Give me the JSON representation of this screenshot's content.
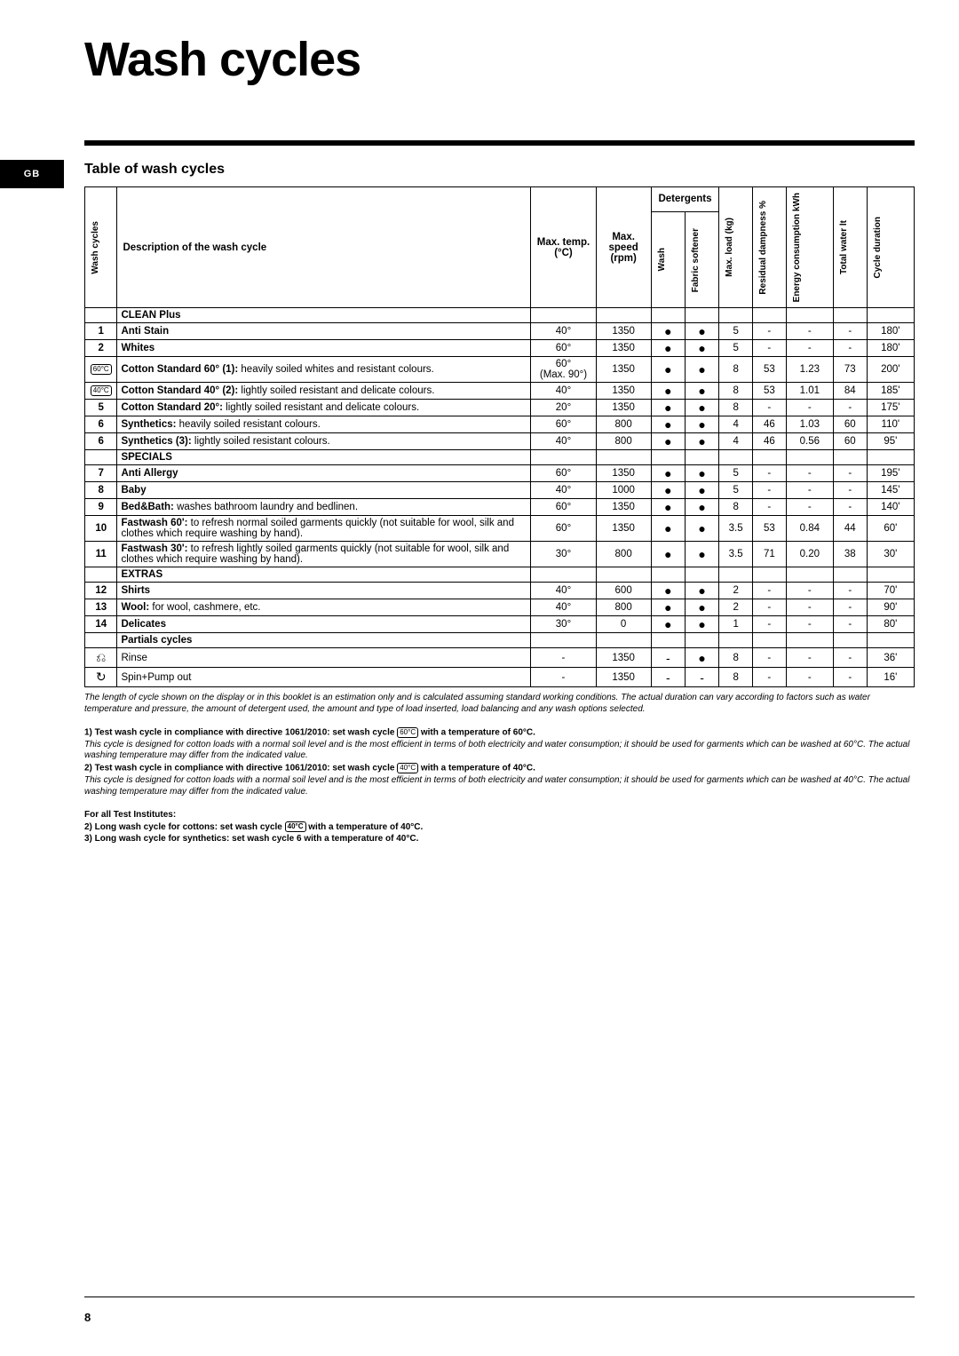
{
  "lang_tab": "GB",
  "title": "Wash cycles",
  "subtitle": "Table of wash cycles",
  "page_number": "8",
  "headers": {
    "wash_cycles": "Wash cycles",
    "description": "Description of the wash cycle",
    "max_temp": "Max. temp. (°C)",
    "max_speed": "Max. speed (rpm)",
    "detergents": "Detergents",
    "wash": "Wash",
    "fabric_softener": "Fabric softener",
    "max_load": "Max. load (kg)",
    "residual_dampness": "Residual dampness %",
    "energy": "Energy consumption kWh",
    "total_water": "Total water lt",
    "cycle_duration": "Cycle duration"
  },
  "sections": [
    {
      "name": "CLEAN Plus",
      "rows": [
        {
          "num": "1",
          "desc": "<b>Anti Stain</b>",
          "temp": "40°",
          "speed": "1350",
          "wash": "●",
          "soft": "●",
          "load": "5",
          "damp": "-",
          "energy": "-",
          "water": "-",
          "dur": "180'"
        },
        {
          "num": "2",
          "desc": "<b>Whites</b>",
          "temp": "60°",
          "speed": "1350",
          "wash": "●",
          "soft": "●",
          "load": "5",
          "damp": "-",
          "energy": "-",
          "water": "-",
          "dur": "180'"
        },
        {
          "num": "icon60",
          "desc": "<b>Cotton Standard 60° (1):</b> heavily soiled whites and resistant colours.",
          "temp": "60°<br>(Max. 90°)",
          "speed": "1350",
          "wash": "●",
          "soft": "●",
          "load": "8",
          "damp": "53",
          "energy": "1.23",
          "water": "73",
          "dur": "200'"
        },
        {
          "num": "icon40",
          "desc": "<b>Cotton Standard 40° (2):</b> lightly soiled resistant and delicate colours.",
          "temp": "40°",
          "speed": "1350",
          "wash": "●",
          "soft": "●",
          "load": "8",
          "damp": "53",
          "energy": "1.01",
          "water": "84",
          "dur": "185'"
        },
        {
          "num": "5",
          "desc": "<b>Cotton Standard 20°:</b> lightly soiled resistant and delicate colours.",
          "temp": "20°",
          "speed": "1350",
          "wash": "●",
          "soft": "●",
          "load": "8",
          "damp": "-",
          "energy": "-",
          "water": "-",
          "dur": "175'"
        },
        {
          "num": "6",
          "desc": "<b>Synthetics:</b> heavily soiled resistant colours.",
          "temp": "60°",
          "speed": "800",
          "wash": "●",
          "soft": "●",
          "load": "4",
          "damp": "46",
          "energy": "1.03",
          "water": "60",
          "dur": "110'"
        },
        {
          "num": "6",
          "desc": "<b>Synthetics (3):</b> lightly soiled resistant colours.",
          "temp": "40°",
          "speed": "800",
          "wash": "●",
          "soft": "●",
          "load": "4",
          "damp": "46",
          "energy": "0.56",
          "water": "60",
          "dur": "95'"
        }
      ]
    },
    {
      "name": "SPECIALS",
      "rows": [
        {
          "num": "7",
          "desc": "<b>Anti Allergy</b>",
          "temp": "60°",
          "speed": "1350",
          "wash": "●",
          "soft": "●",
          "load": "5",
          "damp": "-",
          "energy": "-",
          "water": "-",
          "dur": "195'"
        },
        {
          "num": "8",
          "desc": "<b>Baby</b>",
          "temp": "40°",
          "speed": "1000",
          "wash": "●",
          "soft": "●",
          "load": "5",
          "damp": "-",
          "energy": "-",
          "water": "-",
          "dur": "145'"
        },
        {
          "num": "9",
          "desc": "<b>Bed&Bath:</b> washes bathroom laundry and bedlinen.",
          "temp": "60°",
          "speed": "1350",
          "wash": "●",
          "soft": "●",
          "load": "8",
          "damp": "-",
          "energy": "-",
          "water": "-",
          "dur": "140'"
        },
        {
          "num": "10",
          "desc": "<b>Fastwash 60':</b> to refresh normal soiled garments quickly (not suitable for wool, silk and clothes which require washing by hand).",
          "temp": "60°",
          "speed": "1350",
          "wash": "●",
          "soft": "●",
          "load": "3.5",
          "damp": "53",
          "energy": "0.84",
          "water": "44",
          "dur": "60'"
        },
        {
          "num": "11",
          "desc": "<b>Fastwash 30':</b> to refresh lightly soiled garments quickly (not suitable for wool, silk and clothes which require washing by hand).",
          "temp": "30°",
          "speed": "800",
          "wash": "●",
          "soft": "●",
          "load": "3.5",
          "damp": "71",
          "energy": "0.20",
          "water": "38",
          "dur": "30'"
        }
      ]
    },
    {
      "name": "EXTRAS",
      "rows": [
        {
          "num": "12",
          "desc": "<b>Shirts</b>",
          "temp": "40°",
          "speed": "600",
          "wash": "●",
          "soft": "●",
          "load": "2",
          "damp": "-",
          "energy": "-",
          "water": "-",
          "dur": "70'"
        },
        {
          "num": "13",
          "desc": "<b>Wool:</b> for wool, cashmere, etc.",
          "temp": "40°",
          "speed": "800",
          "wash": "●",
          "soft": "●",
          "load": "2",
          "damp": "-",
          "energy": "-",
          "water": "-",
          "dur": "90'"
        },
        {
          "num": "14",
          "desc": "<b>Delicates</b>",
          "temp": "30°",
          "speed": "0",
          "wash": "●",
          "soft": "●",
          "load": "1",
          "damp": "-",
          "energy": "-",
          "water": "-",
          "dur": "80'"
        }
      ]
    },
    {
      "name": "Partials cycles",
      "rows": [
        {
          "num": "iconRinse",
          "desc": "Rinse",
          "temp": "-",
          "speed": "1350",
          "wash": "-",
          "soft": "●",
          "load": "8",
          "damp": "-",
          "energy": "-",
          "water": "-",
          "dur": "36'"
        },
        {
          "num": "iconSpin",
          "desc": "Spin+Pump out",
          "temp": "-",
          "speed": "1350",
          "wash": "-",
          "soft": "-",
          "load": "8",
          "damp": "-",
          "energy": "-",
          "water": "-",
          "dur": "16'"
        }
      ]
    }
  ],
  "footnotes": {
    "estimation": "The length of cycle shown on the display or in this booklet is an estimation only and is calculated assuming standard working conditions. The actual duration can vary according to factors such as water temperature and pressure, the amount of detergent used, the amount and type of load inserted, load balancing and any wash options selected.",
    "n1_bold": "1) Test wash cycle in compliance with directive 1061/2010: set wash cycle ",
    "n1_icon": "60°C",
    "n1_bold_tail": " with a temperature of 60°C.",
    "n1_ital": "This cycle is designed for cotton loads with a normal soil level and is the most efficient in terms of both electricity and water consumption; it should be used for garments which can be washed at 60°C. The actual washing temperature may differ from the indicated value.",
    "n2_bold": "2) Test wash cycle in compliance with directive 1061/2010: set wash cycle ",
    "n2_icon": "40°C",
    "n2_bold_tail": " with a temperature of 40°C.",
    "n2_ital": "This cycle is designed for cotton loads with a normal soil level and is the most efficient in terms of both electricity and water consumption; it should be used for garments which can be washed at 40°C. The actual washing temperature may differ from the indicated value.",
    "test_inst": "For all Test Institutes:",
    "t2": "2) Long wash cycle for cottons: set wash cycle ",
    "t2_icon": "40°C",
    "t2_tail": " with a temperature of 40°C.",
    "t3": "3) Long wash cycle for synthetics: set wash cycle 6 with a temperature of 40°C."
  }
}
